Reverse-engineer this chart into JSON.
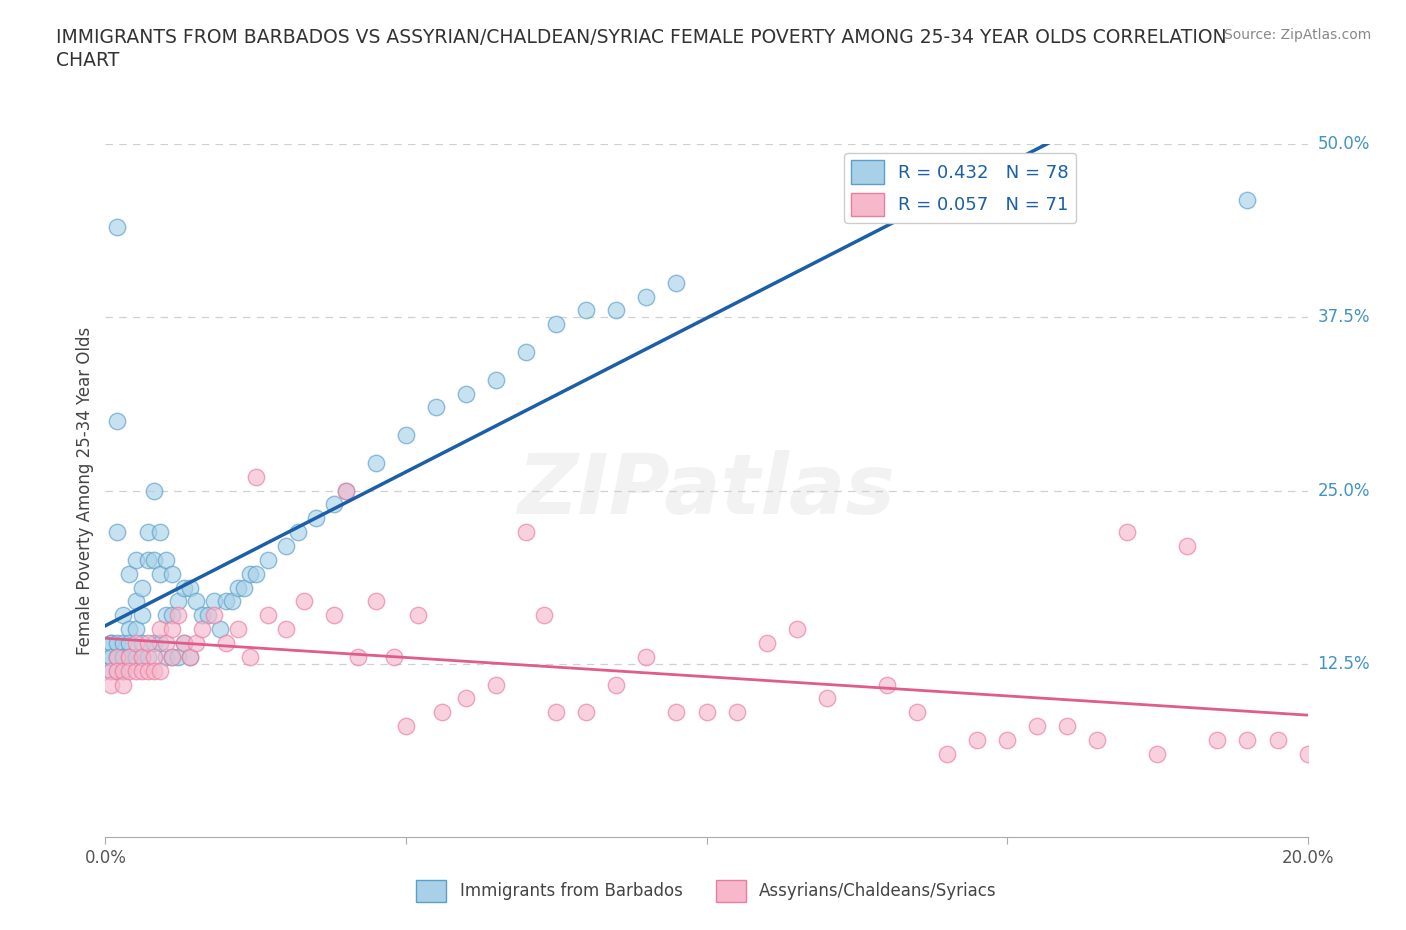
{
  "title_line1": "IMMIGRANTS FROM BARBADOS VS ASSYRIAN/CHALDEAN/SYRIAC FEMALE POVERTY AMONG 25-34 YEAR OLDS CORRELATION",
  "title_line2": "CHART",
  "source_text": "Source: ZipAtlas.com",
  "ylabel": "Female Poverty Among 25-34 Year Olds",
  "xlim": [
    0.0,
    0.2
  ],
  "ylim": [
    0.0,
    0.5
  ],
  "xticks": [
    0.0,
    0.05,
    0.1,
    0.15,
    0.2
  ],
  "xticklabels": [
    "0.0%",
    "",
    "",
    "",
    "20.0%"
  ],
  "yticks_right": [
    0.125,
    0.25,
    0.375,
    0.5
  ],
  "yticklabels_right": [
    "12.5%",
    "25.0%",
    "37.5%",
    "50.0%"
  ],
  "blue_color": "#a8d1e8",
  "blue_edge": "#5b9ec9",
  "pink_color": "#f7b8cc",
  "pink_edge": "#e87da0",
  "trend_blue": "#1a5fa8",
  "trend_pink": "#e05c8c",
  "R_blue": 0.432,
  "N_blue": 78,
  "R_pink": 0.057,
  "N_pink": 71,
  "legend_label_blue": "Immigrants from Barbados",
  "legend_label_pink": "Assyrians/Chaldeans/Syriacs",
  "watermark": "ZIPatlas",
  "blue_scatter_x": [
    0.001,
    0.001,
    0.001,
    0.001,
    0.001,
    0.002,
    0.002,
    0.002,
    0.002,
    0.002,
    0.002,
    0.003,
    0.003,
    0.003,
    0.003,
    0.003,
    0.004,
    0.004,
    0.004,
    0.004,
    0.005,
    0.005,
    0.005,
    0.005,
    0.006,
    0.006,
    0.006,
    0.006,
    0.007,
    0.007,
    0.007,
    0.008,
    0.008,
    0.008,
    0.009,
    0.009,
    0.009,
    0.01,
    0.01,
    0.01,
    0.011,
    0.011,
    0.011,
    0.012,
    0.012,
    0.013,
    0.013,
    0.014,
    0.014,
    0.015,
    0.016,
    0.017,
    0.018,
    0.019,
    0.02,
    0.021,
    0.022,
    0.023,
    0.024,
    0.025,
    0.027,
    0.03,
    0.032,
    0.035,
    0.038,
    0.04,
    0.045,
    0.05,
    0.055,
    0.06,
    0.065,
    0.07,
    0.075,
    0.08,
    0.085,
    0.09,
    0.095,
    0.19
  ],
  "blue_scatter_y": [
    0.14,
    0.13,
    0.12,
    0.14,
    0.13,
    0.44,
    0.3,
    0.22,
    0.14,
    0.13,
    0.12,
    0.16,
    0.14,
    0.13,
    0.13,
    0.12,
    0.19,
    0.15,
    0.14,
    0.13,
    0.2,
    0.17,
    0.15,
    0.13,
    0.18,
    0.16,
    0.14,
    0.13,
    0.22,
    0.2,
    0.13,
    0.25,
    0.2,
    0.14,
    0.22,
    0.19,
    0.14,
    0.2,
    0.16,
    0.13,
    0.19,
    0.16,
    0.13,
    0.17,
    0.13,
    0.18,
    0.14,
    0.18,
    0.13,
    0.17,
    0.16,
    0.16,
    0.17,
    0.15,
    0.17,
    0.17,
    0.18,
    0.18,
    0.19,
    0.19,
    0.2,
    0.21,
    0.22,
    0.23,
    0.24,
    0.25,
    0.27,
    0.29,
    0.31,
    0.32,
    0.33,
    0.35,
    0.37,
    0.38,
    0.38,
    0.39,
    0.4,
    0.46
  ],
  "pink_scatter_x": [
    0.001,
    0.001,
    0.002,
    0.002,
    0.003,
    0.003,
    0.004,
    0.004,
    0.005,
    0.005,
    0.006,
    0.006,
    0.007,
    0.007,
    0.008,
    0.008,
    0.009,
    0.009,
    0.01,
    0.011,
    0.011,
    0.012,
    0.013,
    0.014,
    0.015,
    0.016,
    0.018,
    0.02,
    0.022,
    0.024,
    0.027,
    0.03,
    0.033,
    0.038,
    0.04,
    0.042,
    0.045,
    0.048,
    0.052,
    0.056,
    0.06,
    0.065,
    0.07,
    0.075,
    0.08,
    0.085,
    0.09,
    0.095,
    0.1,
    0.105,
    0.11,
    0.115,
    0.12,
    0.13,
    0.135,
    0.14,
    0.145,
    0.15,
    0.155,
    0.16,
    0.165,
    0.17,
    0.175,
    0.18,
    0.185,
    0.19,
    0.195,
    0.2,
    0.025,
    0.05,
    0.073
  ],
  "pink_scatter_y": [
    0.12,
    0.11,
    0.13,
    0.12,
    0.12,
    0.11,
    0.13,
    0.12,
    0.14,
    0.12,
    0.13,
    0.12,
    0.14,
    0.12,
    0.13,
    0.12,
    0.15,
    0.12,
    0.14,
    0.15,
    0.13,
    0.16,
    0.14,
    0.13,
    0.14,
    0.15,
    0.16,
    0.14,
    0.15,
    0.13,
    0.16,
    0.15,
    0.17,
    0.16,
    0.25,
    0.13,
    0.17,
    0.13,
    0.16,
    0.09,
    0.1,
    0.11,
    0.22,
    0.09,
    0.09,
    0.11,
    0.13,
    0.09,
    0.09,
    0.09,
    0.14,
    0.15,
    0.1,
    0.11,
    0.09,
    0.06,
    0.07,
    0.07,
    0.08,
    0.08,
    0.07,
    0.22,
    0.06,
    0.21,
    0.07,
    0.07,
    0.07,
    0.06,
    0.26,
    0.08,
    0.16
  ],
  "background_color": "#ffffff",
  "grid_color": "#d0d0d0"
}
